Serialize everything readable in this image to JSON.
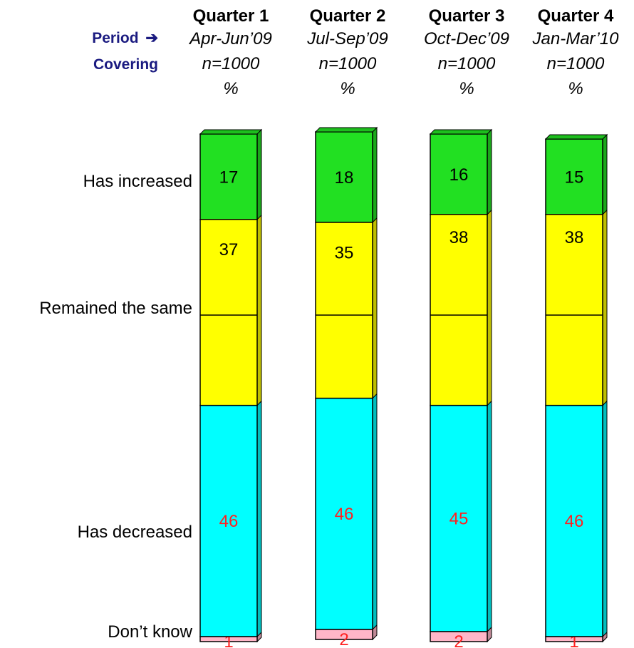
{
  "header": {
    "period_label": "Period",
    "period_arrow": "➔",
    "covering_label": "Covering"
  },
  "quarters": [
    {
      "title": "Quarter 1",
      "period": "Apr-Jun’09",
      "n": "n=1000",
      "unit": "%"
    },
    {
      "title": "Quarter 2",
      "period": "Jul-Sep’09",
      "n": "n=1000",
      "unit": "%"
    },
    {
      "title": "Quarter 3",
      "period": "Oct-Dec’09",
      "n": "n=1000",
      "unit": "%"
    },
    {
      "title": "Quarter 4",
      "period": "Jan-Mar’10",
      "n": "n=1000",
      "unit": "%"
    }
  ],
  "row_labels": [
    "Has increased",
    "Remained the same",
    "Has decreased",
    "Don’t know"
  ],
  "chart_data": {
    "type": "bar",
    "stacked": true,
    "orientation": "vertical",
    "categories": [
      "Quarter 1",
      "Quarter 2",
      "Quarter 3",
      "Quarter 4"
    ],
    "series": [
      {
        "name": "Has increased",
        "values": [
          17,
          18,
          16,
          15
        ],
        "color": "#22e022",
        "label_color": "#000000"
      },
      {
        "name": "Remained the same",
        "values": [
          37,
          35,
          38,
          38
        ],
        "color": "#ffff00",
        "label_color": "#000000"
      },
      {
        "name": "Has decreased",
        "values": [
          46,
          46,
          45,
          46
        ],
        "color": "#00ffff",
        "label_color": "#ff2020"
      },
      {
        "name": "Don’t know",
        "values": [
          1,
          2,
          2,
          1
        ],
        "color": "#ffb6c8",
        "label_color": "#ff2020"
      }
    ],
    "grid": false,
    "legend": "none"
  }
}
